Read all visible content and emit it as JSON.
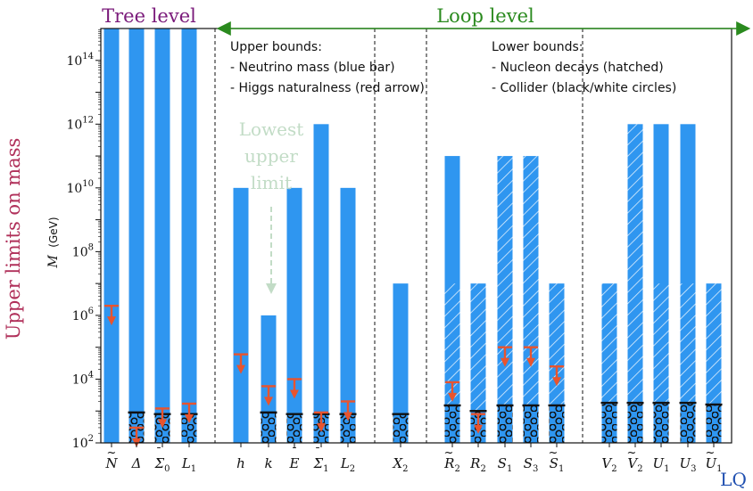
{
  "chart_data": {
    "type": "bar",
    "ylabel_outer": "Upper limits on mass",
    "ylabel": "M",
    "ylabel_unit": "(GeV)",
    "yscale": "log",
    "ylim": [
      100,
      1000000000000000.0
    ],
    "yticks": [
      {
        "value": 100,
        "label": "10",
        "exp": "2"
      },
      {
        "value": 10000,
        "label": "10",
        "exp": "4"
      },
      {
        "value": 1000000,
        "label": "10",
        "exp": "6"
      },
      {
        "value": 100000000,
        "label": "10",
        "exp": "8"
      },
      {
        "value": 10000000000,
        "label": "10",
        "exp": "10"
      },
      {
        "value": 1000000000000,
        "label": "10",
        "exp": "12"
      },
      {
        "value": 100000000000000,
        "label": "10",
        "exp": "14"
      }
    ],
    "sections": {
      "tree": "Tree level",
      "loop": "Loop level"
    },
    "x_end_label": "LQ",
    "legend_upper": {
      "title": "Upper bounds:",
      "items": [
        "- Neutrino mass (blue bar)",
        "- Higgs naturalness (red arrow)"
      ]
    },
    "legend_lower": {
      "title": "Lower bounds:",
      "items": [
        "- Nucleon decays (hatched)",
        "- Collider (black/white circles)"
      ]
    },
    "annotation": "Lowest upper limit",
    "group_separators_after": [
      "L1",
      "L2",
      "X2",
      "S1t"
    ],
    "colors": {
      "bar": "#2f96f0",
      "arrow": "#e8542e",
      "tree_label": "#7a1a7a",
      "loop_label": "#2a8a1e",
      "axis_label": "#b0305a",
      "annotation": "#c2dcc6",
      "lq_label": "#1f4fb0"
    },
    "fields": [
      {
        "id": "N",
        "base": "N",
        "acc": "~",
        "sub": "",
        "group": "tree",
        "upper": 1000000000000000.0,
        "arrow": 2000000.0,
        "hatch_to": null,
        "collider": null
      },
      {
        "id": "Delta",
        "base": "Δ",
        "acc": "",
        "sub": "",
        "group": "tree",
        "upper": 1000000000000000.0,
        "arrow": 300,
        "hatch_to": null,
        "collider": 900
      },
      {
        "id": "Sigma0",
        "base": "Σ",
        "acc": "¯",
        "sub": "0",
        "group": "tree",
        "upper": 1000000000000000.0,
        "arrow": 1200,
        "hatch_to": null,
        "collider": 800
      },
      {
        "id": "L1",
        "base": "L",
        "acc": "",
        "sub": "1",
        "group": "tree",
        "upper": 1000000000000000.0,
        "arrow": 1700,
        "hatch_to": null,
        "collider": 800
      },
      {
        "id": "h",
        "base": "h",
        "acc": "",
        "sub": "",
        "group": "loop",
        "upper": 10000000000.0,
        "arrow": 60000,
        "hatch_to": null,
        "collider": null
      },
      {
        "id": "k",
        "base": "k",
        "acc": "",
        "sub": "",
        "group": "loop",
        "upper": 1000000.0,
        "arrow": 6000,
        "hatch_to": null,
        "collider": 900
      },
      {
        "id": "E",
        "base": "E",
        "acc": "¯",
        "sub": "",
        "group": "loop",
        "upper": 10000000000.0,
        "arrow": 10000,
        "hatch_to": null,
        "collider": 800
      },
      {
        "id": "Sigma1",
        "base": "Σ",
        "acc": "¯",
        "sub": "1",
        "group": "loop",
        "upper": 1000000000000.0,
        "arrow": 900,
        "hatch_to": null,
        "collider": 800
      },
      {
        "id": "L2",
        "base": "L",
        "acc": "",
        "sub": "2",
        "group": "loop",
        "upper": 10000000000.0,
        "arrow": 2000,
        "hatch_to": null,
        "collider": 800
      },
      {
        "id": "X2",
        "base": "X",
        "acc": "",
        "sub": "2",
        "group": "loop",
        "upper": 10000000.0,
        "arrow": null,
        "hatch_to": null,
        "collider": 800
      },
      {
        "id": "R2t",
        "base": "R",
        "acc": "~",
        "sub": "2",
        "group": "loop",
        "upper": 100000000000.0,
        "arrow": 8000,
        "hatch_to": 10000000.0,
        "collider": 1500
      },
      {
        "id": "R2",
        "base": "R",
        "acc": "",
        "sub": "2",
        "group": "loop",
        "upper": 10000000.0,
        "arrow": 800,
        "hatch_to": 10000000.0,
        "collider": 1000
      },
      {
        "id": "S1",
        "base": "S",
        "acc": "",
        "sub": "1",
        "group": "loop",
        "upper": 100000000000.0,
        "arrow": 100000,
        "hatch_to": 100000000000.0,
        "collider": 1500
      },
      {
        "id": "S3",
        "base": "S",
        "acc": "",
        "sub": "3",
        "group": "loop",
        "upper": 100000000000.0,
        "arrow": 100000,
        "hatch_to": 100000000000.0,
        "collider": 1500
      },
      {
        "id": "S1t",
        "base": "S",
        "acc": "~",
        "sub": "1",
        "group": "loop",
        "upper": 10000000.0,
        "arrow": 25000,
        "hatch_to": 10000000.0,
        "collider": 1500
      },
      {
        "id": "V2",
        "base": "V",
        "acc": "",
        "sub": "2",
        "group": "loop",
        "upper": 10000000.0,
        "arrow": null,
        "hatch_to": 10000000.0,
        "collider": 1800
      },
      {
        "id": "V2t",
        "base": "V",
        "acc": "~",
        "sub": "2",
        "group": "loop",
        "upper": 1000000000000.0,
        "arrow": null,
        "hatch_to": 1000000000000.0,
        "collider": 1800
      },
      {
        "id": "U1",
        "base": "U",
        "acc": "",
        "sub": "1",
        "group": "loop",
        "upper": 1000000000000.0,
        "arrow": null,
        "hatch_to": 10000000.0,
        "collider": 1800
      },
      {
        "id": "U3",
        "base": "U",
        "acc": "",
        "sub": "3",
        "group": "loop",
        "upper": 1000000000000.0,
        "arrow": null,
        "hatch_to": 10000000.0,
        "collider": 1800
      },
      {
        "id": "U1t",
        "base": "U",
        "acc": "~",
        "sub": "1",
        "group": "loop",
        "upper": 10000000.0,
        "arrow": null,
        "hatch_to": 10000000.0,
        "collider": 1600
      }
    ]
  }
}
